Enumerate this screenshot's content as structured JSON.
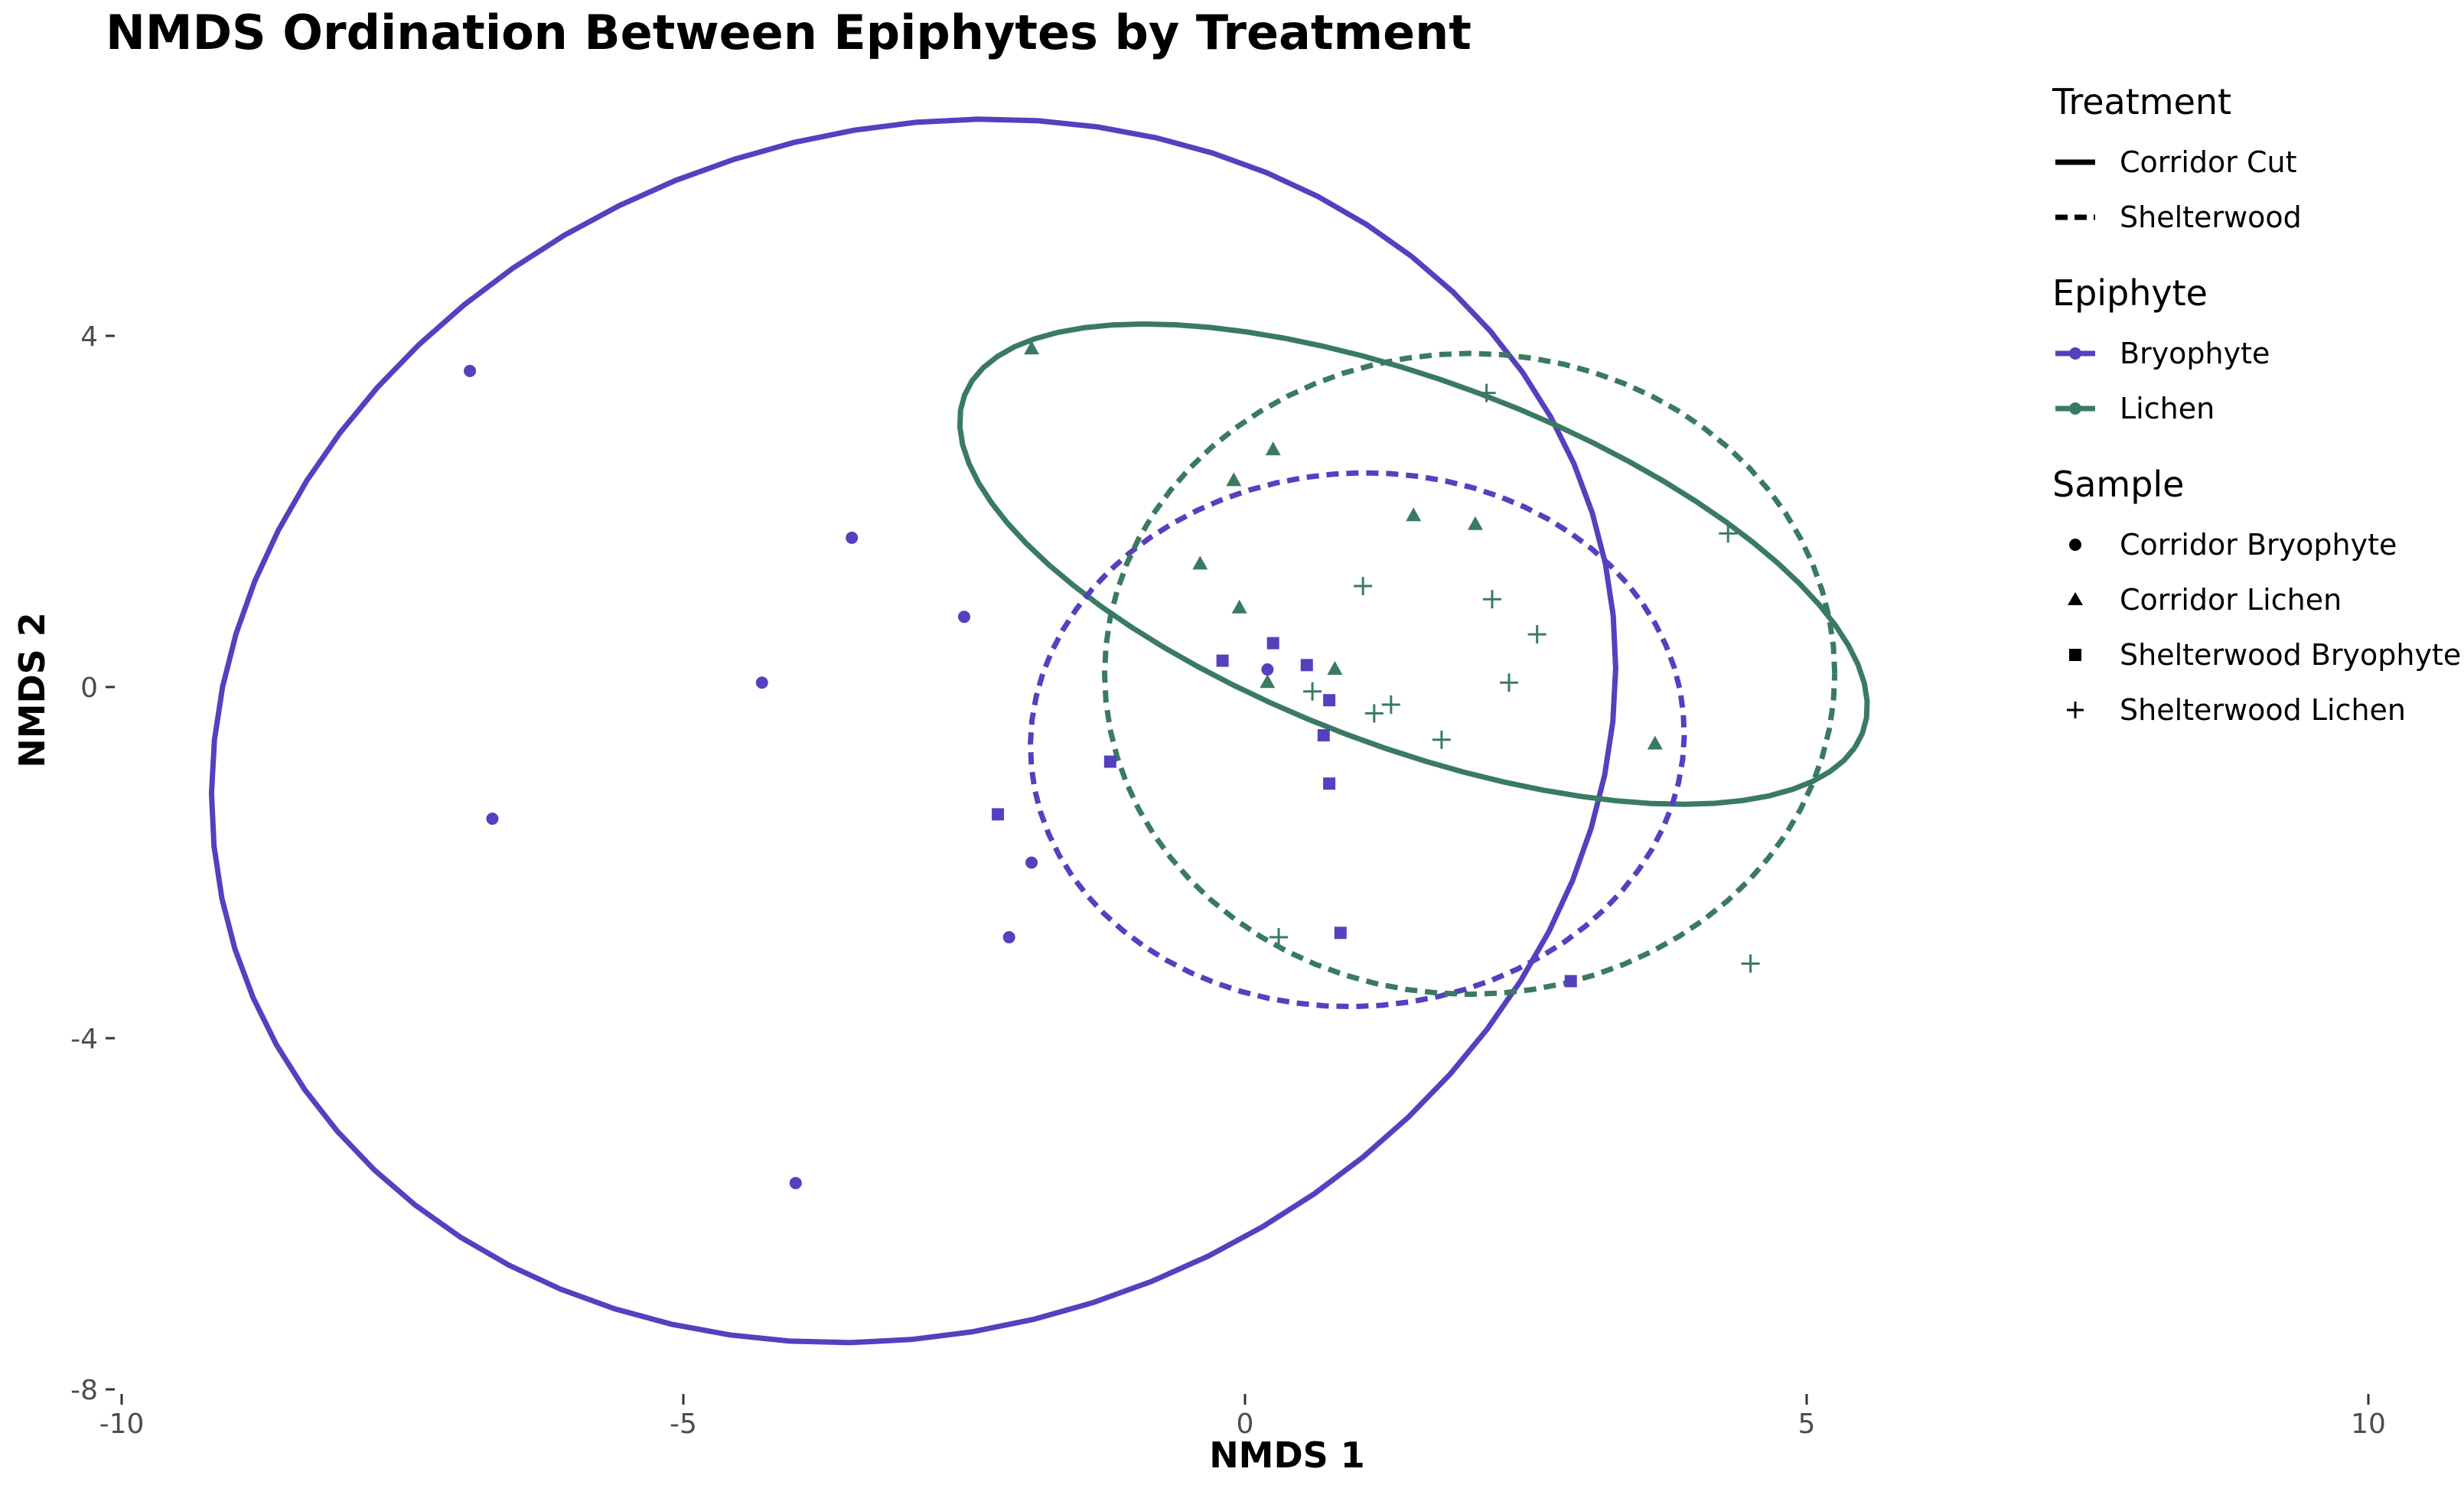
{
  "chart_data": {
    "type": "scatter",
    "title": "NMDS Ordination Between Epiphytes by Treatment",
    "xlabel": "NMDS 1",
    "ylabel": "NMDS 2",
    "xlim": [
      -10,
      10
    ],
    "ylim": [
      -8,
      6.4
    ],
    "x_ticks": [
      -10,
      -5,
      0,
      5,
      10
    ],
    "x_tick_labels": [
      "-10",
      "-5",
      "0",
      "5",
      "10"
    ],
    "y_ticks": [
      -8,
      -4,
      0,
      4
    ],
    "y_tick_labels": [
      "-8",
      "-4",
      "0",
      "4"
    ],
    "grid": false,
    "legend_position": "right",
    "colors": {
      "Bryophyte": "#5540bf",
      "Lichen": "#3a7a63"
    },
    "series": [
      {
        "name": "Corridor Bryophyte",
        "epiphyte": "Bryophyte",
        "treatment": "Corridor Cut",
        "shape": "circle",
        "points": [
          [
            -6.9,
            3.6
          ],
          [
            -3.5,
            1.7
          ],
          [
            -4.3,
            0.05
          ],
          [
            -6.7,
            -1.5
          ],
          [
            -2.5,
            0.8
          ],
          [
            0.2,
            0.2
          ],
          [
            -1.9,
            -2.0
          ],
          [
            -2.1,
            -2.85
          ],
          [
            -4.0,
            -5.65
          ]
        ]
      },
      {
        "name": "Corridor Lichen",
        "epiphyte": "Lichen",
        "treatment": "Corridor Cut",
        "shape": "triangle",
        "points": [
          [
            -1.9,
            3.85
          ],
          [
            0.25,
            2.7
          ],
          [
            -0.1,
            2.35
          ],
          [
            1.5,
            1.95
          ],
          [
            2.05,
            1.85
          ],
          [
            -0.4,
            1.4
          ],
          [
            -0.05,
            0.9
          ],
          [
            0.8,
            0.2
          ],
          [
            0.2,
            0.05
          ],
          [
            3.65,
            -0.65
          ]
        ]
      },
      {
        "name": "Shelterwood Bryophyte",
        "epiphyte": "Bryophyte",
        "treatment": "Shelterwood",
        "shape": "square",
        "points": [
          [
            -0.2,
            0.3
          ],
          [
            0.25,
            0.5
          ],
          [
            0.55,
            0.25
          ],
          [
            0.75,
            -0.15
          ],
          [
            0.7,
            -0.55
          ],
          [
            -1.2,
            -0.85
          ],
          [
            0.75,
            -1.1
          ],
          [
            -2.2,
            -1.45
          ],
          [
            0.85,
            -2.8
          ],
          [
            2.9,
            -3.35
          ]
        ]
      },
      {
        "name": "Shelterwood Lichen",
        "epiphyte": "Lichen",
        "treatment": "Shelterwood",
        "shape": "cross",
        "points": [
          [
            2.15,
            3.35
          ],
          [
            4.3,
            1.75
          ],
          [
            1.05,
            1.15
          ],
          [
            2.2,
            1.0
          ],
          [
            2.6,
            0.6
          ],
          [
            2.35,
            0.05
          ],
          [
            0.6,
            -0.05
          ],
          [
            1.3,
            -0.2
          ],
          [
            1.15,
            -0.3
          ],
          [
            1.75,
            -0.6
          ],
          [
            0.3,
            -2.85
          ],
          [
            4.5,
            -3.15
          ]
        ]
      }
    ],
    "ellipses": [
      {
        "epiphyte": "Bryophyte",
        "treatment": "Corridor Cut",
        "center": [
          -2.95,
          -0.5
        ],
        "rx": 6.1,
        "ry": 7.1,
        "angle_deg": -22
      },
      {
        "epiphyte": "Lichen",
        "treatment": "Corridor Cut",
        "center": [
          1.5,
          1.4
        ],
        "rx": 4.45,
        "ry": 2.0,
        "angle_deg": -28
      },
      {
        "epiphyte": "Bryophyte",
        "treatment": "Shelterwood",
        "center": [
          1.0,
          -0.6
        ],
        "rx": 2.9,
        "ry": 3.05,
        "angle_deg": -15
      },
      {
        "epiphyte": "Lichen",
        "treatment": "Shelterwood",
        "center": [
          2.0,
          0.15
        ],
        "rx": 3.25,
        "ry": 3.65,
        "angle_deg": 0
      }
    ]
  },
  "legend": {
    "treatment": {
      "title": "Treatment",
      "items": [
        {
          "label": "Corridor Cut",
          "dash": "solid"
        },
        {
          "label": "Shelterwood",
          "dash": "dashed"
        }
      ]
    },
    "epiphyte": {
      "title": "Epiphyte",
      "items": [
        {
          "label": "Bryophyte",
          "color": "#5540bf"
        },
        {
          "label": "Lichen",
          "color": "#3a7a63"
        }
      ]
    },
    "sample": {
      "title": "Sample",
      "items": [
        {
          "label": "Corridor Bryophyte",
          "shape": "circle"
        },
        {
          "label": "Corridor Lichen",
          "shape": "triangle"
        },
        {
          "label": "Shelterwood Bryophyte",
          "shape": "square"
        },
        {
          "label": "Shelterwood Lichen",
          "shape": "cross"
        }
      ]
    }
  }
}
